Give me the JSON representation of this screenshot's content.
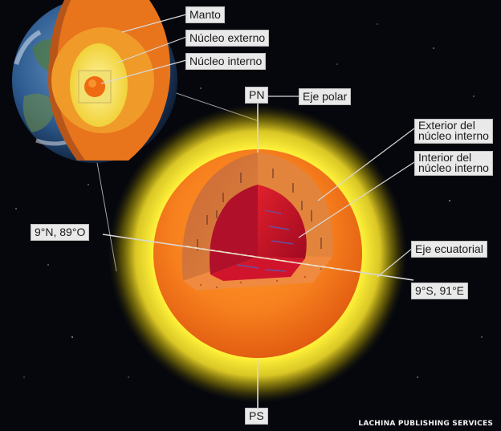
{
  "labels": {
    "manto": "Manto",
    "nucleo_externo": "Núcleo externo",
    "nucleo_interno": "Núcleo interno",
    "pn": "PN",
    "eje_polar": "Eje polar",
    "exterior_line1": "Exterior del",
    "exterior_line2": "núcleo interno",
    "interior_line1": "Interior del",
    "interior_line2": "núcleo interno",
    "coord_west": "9°N, 89°O",
    "eje_ecuatorial": "Eje ecuatorial",
    "coord_east": "9°S, 91°E",
    "ps": "PS"
  },
  "credit": "LACHINA PUBLISHING SERVICES",
  "colors": {
    "background": "#05070d",
    "label_bg": "#e9e9e9",
    "glow": "#fff23a",
    "outer_core": "#f7801e",
    "inner_core_outer_layer": "#d96a2c",
    "inner_core_interior": "#c8102e",
    "mantle": "#e8741c"
  }
}
